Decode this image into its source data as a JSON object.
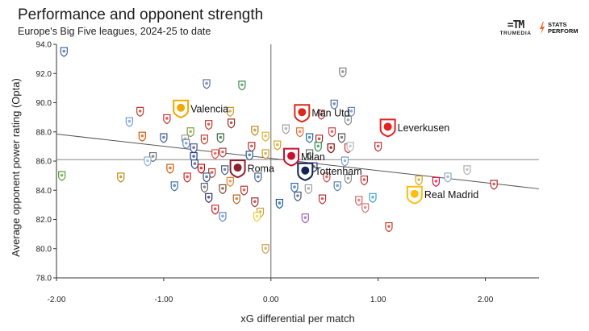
{
  "header": {
    "title": "Performance and opponent strength",
    "subtitle": "Europe's Big Five leagues, 2024-25 to date"
  },
  "logos": {
    "trumedia": "TRUMEDIA",
    "stats_perform_line1": "STATS",
    "stats_perform_line2": "PERFORM"
  },
  "colors": {
    "axis": "#333333",
    "trend_line": "#555555",
    "accent_orange": "#f26722",
    "accent_red": "#e03a3e"
  },
  "chart_data": {
    "type": "scatter",
    "title": "Performance and opponent strength",
    "subtitle": "Europe's Big Five leagues, 2024-25 to date",
    "xlabel": "xG differential per match",
    "ylabel": "Average opponent power rating (Opta)",
    "xlim": [
      -2.0,
      2.5
    ],
    "ylim": [
      78.0,
      94.0
    ],
    "xticks": [
      -2.0,
      -1.0,
      0.0,
      1.0,
      2.0
    ],
    "xtick_labels": [
      "-2.00",
      "-1.00",
      "0.00",
      "1.00",
      "2.00"
    ],
    "yticks": [
      78,
      80,
      82,
      84,
      86,
      88,
      90,
      92,
      94
    ],
    "ytick_labels": [
      "78.0",
      "80.0",
      "82.0",
      "84.0",
      "86.0",
      "88.0",
      "90.0",
      "92.0",
      "94.0"
    ],
    "grid": false,
    "trend_line": {
      "x": [
        -2.0,
        2.5
      ],
      "y": [
        87.85,
        84.1
      ]
    },
    "reference_line_y": 86.1,
    "labeled_points": [
      {
        "name": "Valencia",
        "x": -0.84,
        "y": 89.6,
        "color": "#f2a900"
      },
      {
        "name": "Man Utd",
        "x": 0.29,
        "y": 89.3,
        "color": "#da291c"
      },
      {
        "name": "Leverkusen",
        "x": 1.09,
        "y": 88.3,
        "color": "#e32221"
      },
      {
        "name": "Milan",
        "x": 0.19,
        "y": 86.3,
        "color": "#c8102e"
      },
      {
        "name": "Roma",
        "x": -0.31,
        "y": 85.5,
        "color": "#8e1f2f"
      },
      {
        "name": "Tottenham",
        "x": 0.32,
        "y": 85.3,
        "color": "#132257"
      },
      {
        "name": "Real Madrid",
        "x": 1.34,
        "y": 83.7,
        "color": "#febe10"
      }
    ],
    "other_points": [
      {
        "x": -1.93,
        "y": 93.5,
        "color": "#3a5fa0"
      },
      {
        "x": 0.67,
        "y": 92.1,
        "color": "#7a7a7a"
      },
      {
        "x": -0.6,
        "y": 91.3,
        "color": "#5a6f9a"
      },
      {
        "x": -0.27,
        "y": 91.2,
        "color": "#3d8f4f"
      },
      {
        "x": -1.22,
        "y": 89.4,
        "color": "#c0392b"
      },
      {
        "x": -0.38,
        "y": 89.4,
        "color": "#c79b2b"
      },
      {
        "x": 0.59,
        "y": 89.9,
        "color": "#4a6fa5"
      },
      {
        "x": 0.75,
        "y": 89.4,
        "color": "#6b8cc4"
      },
      {
        "x": 0.47,
        "y": 89.2,
        "color": "#b03030"
      },
      {
        "x": -1.32,
        "y": 88.7,
        "color": "#6c9bd2"
      },
      {
        "x": -0.97,
        "y": 88.9,
        "color": "#d12b2b"
      },
      {
        "x": -0.58,
        "y": 88.5,
        "color": "#c0392b"
      },
      {
        "x": -0.37,
        "y": 88.6,
        "color": "#9c2a2a"
      },
      {
        "x": 0.72,
        "y": 88.8,
        "color": "#888888"
      },
      {
        "x": -0.75,
        "y": 88.0,
        "color": "#7f9f3f"
      },
      {
        "x": -0.15,
        "y": 88.1,
        "color": "#b8860b"
      },
      {
        "x": 0.14,
        "y": 88.2,
        "color": "#a0a0a0"
      },
      {
        "x": 0.27,
        "y": 88.0,
        "color": "#e86a3a"
      },
      {
        "x": 0.57,
        "y": 88.0,
        "color": "#c44"
      },
      {
        "x": -1.2,
        "y": 87.7,
        "color": "#d35400"
      },
      {
        "x": -1.0,
        "y": 87.6,
        "color": "#3b5998"
      },
      {
        "x": -0.8,
        "y": 87.5,
        "color": "#999999"
      },
      {
        "x": -0.62,
        "y": 87.5,
        "color": "#c0392b"
      },
      {
        "x": -0.47,
        "y": 87.6,
        "color": "#2f6a3a"
      },
      {
        "x": -0.05,
        "y": 87.7,
        "color": "#e0b030"
      },
      {
        "x": 0.36,
        "y": 87.6,
        "color": "#1d6fa5"
      },
      {
        "x": 0.45,
        "y": 87.5,
        "color": "#b22222"
      },
      {
        "x": 0.66,
        "y": 87.6,
        "color": "#555555"
      },
      {
        "x": -0.79,
        "y": 87.2,
        "color": "#6a8fbf"
      },
      {
        "x": -0.72,
        "y": 86.9,
        "color": "#4a4a8a"
      },
      {
        "x": -0.18,
        "y": 87.0,
        "color": "#aa3333"
      },
      {
        "x": 0.06,
        "y": 87.1,
        "color": "#d4a017"
      },
      {
        "x": 0.44,
        "y": 87.0,
        "color": "#2e8b57"
      },
      {
        "x": 0.56,
        "y": 86.9,
        "color": "#8b0000"
      },
      {
        "x": 0.72,
        "y": 86.9,
        "color": "#cc3333"
      },
      {
        "x": 0.74,
        "y": 87.0,
        "color": "#b8b8b8"
      },
      {
        "x": 1.0,
        "y": 87.0,
        "color": "#c03030"
      },
      {
        "x": -1.1,
        "y": 86.3,
        "color": "#6a6a6a"
      },
      {
        "x": -1.15,
        "y": 86.0,
        "color": "#8fb0d8"
      },
      {
        "x": -0.72,
        "y": 86.3,
        "color": "#1f3a93"
      },
      {
        "x": -0.52,
        "y": 86.5,
        "color": "#e74c3c"
      },
      {
        "x": -0.45,
        "y": 86.6,
        "color": "#a94442"
      },
      {
        "x": -0.2,
        "y": 86.4,
        "color": "#2c5e8f"
      },
      {
        "x": -0.05,
        "y": 86.5,
        "color": "#c79b2b"
      },
      {
        "x": 0.36,
        "y": 86.5,
        "color": "#6d6d6d"
      },
      {
        "x": 0.69,
        "y": 86.0,
        "color": "#7a99c8"
      },
      {
        "x": -0.71,
        "y": 85.8,
        "color": "#2a4d8f"
      },
      {
        "x": -0.65,
        "y": 85.5,
        "color": "#cc0000"
      },
      {
        "x": -0.55,
        "y": 85.2,
        "color": "#b03a2e"
      },
      {
        "x": -0.43,
        "y": 85.4,
        "color": "#406080"
      },
      {
        "x": -0.94,
        "y": 85.5,
        "color": "#d35400"
      },
      {
        "x": 0.4,
        "y": 85.6,
        "color": "#333366"
      },
      {
        "x": 1.83,
        "y": 85.4,
        "color": "#b0b0b0"
      },
      {
        "x": -1.95,
        "y": 85.0,
        "color": "#5a9c3a"
      },
      {
        "x": -1.4,
        "y": 84.9,
        "color": "#b8860b"
      },
      {
        "x": -0.78,
        "y": 84.9,
        "color": "#cc2222"
      },
      {
        "x": -0.6,
        "y": 84.9,
        "color": "#2f4f7f"
      },
      {
        "x": -0.38,
        "y": 84.6,
        "color": "#e67e22"
      },
      {
        "x": -0.12,
        "y": 84.9,
        "color": "#446688"
      },
      {
        "x": 0.52,
        "y": 84.9,
        "color": "#cc4444"
      },
      {
        "x": 0.72,
        "y": 84.8,
        "color": "#8a8a8a"
      },
      {
        "x": 0.87,
        "y": 84.7,
        "color": "#c03030"
      },
      {
        "x": 1.65,
        "y": 84.9,
        "color": "#8fa8c8"
      },
      {
        "x": 1.54,
        "y": 84.6,
        "color": "#d14"
      },
      {
        "x": 1.38,
        "y": 84.7,
        "color": "#d4a017"
      },
      {
        "x": 2.08,
        "y": 84.4,
        "color": "#b03030"
      },
      {
        "x": -0.9,
        "y": 84.3,
        "color": "#3a6ea5"
      },
      {
        "x": -0.62,
        "y": 84.2,
        "color": "#666666"
      },
      {
        "x": -0.45,
        "y": 84.1,
        "color": "#7a4a2a"
      },
      {
        "x": -0.25,
        "y": 84.0,
        "color": "#c0392b"
      },
      {
        "x": 0.22,
        "y": 84.2,
        "color": "#2a6fb0"
      },
      {
        "x": 0.35,
        "y": 84.1,
        "color": "#9a9a9a"
      },
      {
        "x": 0.62,
        "y": 84.3,
        "color": "#5a7fb5"
      },
      {
        "x": -0.58,
        "y": 83.5,
        "color": "#2d2d6d"
      },
      {
        "x": -0.32,
        "y": 83.4,
        "color": "#b5651d"
      },
      {
        "x": -0.15,
        "y": 83.2,
        "color": "#a03030"
      },
      {
        "x": 0.08,
        "y": 83.1,
        "color": "#1a5a9a"
      },
      {
        "x": 0.25,
        "y": 83.6,
        "color": "#445577"
      },
      {
        "x": 0.48,
        "y": 83.4,
        "color": "#bb3333"
      },
      {
        "x": 0.82,
        "y": 83.3,
        "color": "#c66"
      },
      {
        "x": 0.95,
        "y": 83.5,
        "color": "#3aa0c8"
      },
      {
        "x": -0.52,
        "y": 82.7,
        "color": "#cc2222"
      },
      {
        "x": 0.88,
        "y": 82.8,
        "color": "#e07070"
      },
      {
        "x": -0.1,
        "y": 82.5,
        "color": "#c8a040"
      },
      {
        "x": -0.45,
        "y": 82.2,
        "color": "#5a88c8"
      },
      {
        "x": -0.13,
        "y": 82.2,
        "color": "#e8d040"
      },
      {
        "x": 0.32,
        "y": 82.1,
        "color": "#9a5fb5"
      },
      {
        "x": 1.1,
        "y": 81.5,
        "color": "#c0392b"
      },
      {
        "x": -0.05,
        "y": 80.0,
        "color": "#c8a050"
      }
    ]
  }
}
